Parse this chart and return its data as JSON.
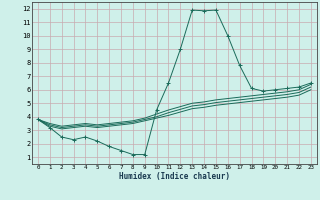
{
  "xlabel": "Humidex (Indice chaleur)",
  "xlim": [
    -0.5,
    23.5
  ],
  "ylim": [
    0.5,
    12.5
  ],
  "xticks": [
    0,
    1,
    2,
    3,
    4,
    5,
    6,
    7,
    8,
    9,
    10,
    11,
    12,
    13,
    14,
    15,
    16,
    17,
    18,
    19,
    20,
    21,
    22,
    23
  ],
  "yticks": [
    1,
    2,
    3,
    4,
    5,
    6,
    7,
    8,
    9,
    10,
    11,
    12
  ],
  "bg_color": "#cff0ea",
  "grid_color": "#c8aab0",
  "line_color": "#1a6b5a",
  "main_line": {
    "x": [
      0,
      1,
      2,
      3,
      4,
      5,
      6,
      7,
      8,
      9,
      10,
      11,
      12,
      13,
      14,
      15,
      16,
      17,
      18,
      19,
      20,
      21,
      22,
      23
    ],
    "y": [
      3.8,
      3.2,
      2.5,
      2.3,
      2.5,
      2.2,
      1.8,
      1.5,
      1.2,
      1.2,
      4.5,
      6.5,
      9.0,
      11.9,
      11.85,
      11.9,
      10.0,
      7.8,
      6.1,
      5.9,
      6.0,
      6.1,
      6.2,
      6.5
    ]
  },
  "smooth_lines": [
    {
      "x": [
        0,
        1,
        2,
        3,
        4,
        5,
        6,
        7,
        8,
        9,
        10,
        11,
        12,
        13,
        14,
        15,
        16,
        17,
        18,
        19,
        20,
        21,
        22,
        23
      ],
      "y": [
        3.8,
        3.5,
        3.3,
        3.4,
        3.5,
        3.4,
        3.5,
        3.6,
        3.7,
        3.9,
        4.2,
        4.5,
        4.75,
        5.0,
        5.1,
        5.25,
        5.35,
        5.45,
        5.55,
        5.65,
        5.75,
        5.85,
        6.0,
        6.4
      ]
    },
    {
      "x": [
        0,
        1,
        2,
        3,
        4,
        5,
        6,
        7,
        8,
        9,
        10,
        11,
        12,
        13,
        14,
        15,
        16,
        17,
        18,
        19,
        20,
        21,
        22,
        23
      ],
      "y": [
        3.8,
        3.4,
        3.2,
        3.3,
        3.4,
        3.3,
        3.4,
        3.5,
        3.6,
        3.8,
        4.0,
        4.3,
        4.55,
        4.8,
        4.9,
        5.05,
        5.15,
        5.25,
        5.35,
        5.45,
        5.55,
        5.65,
        5.8,
        6.2
      ]
    },
    {
      "x": [
        0,
        1,
        2,
        3,
        4,
        5,
        6,
        7,
        8,
        9,
        10,
        11,
        12,
        13,
        14,
        15,
        16,
        17,
        18,
        19,
        20,
        21,
        22,
        23
      ],
      "y": [
        3.8,
        3.3,
        3.1,
        3.2,
        3.3,
        3.2,
        3.3,
        3.4,
        3.5,
        3.7,
        3.9,
        4.1,
        4.35,
        4.6,
        4.7,
        4.85,
        4.95,
        5.05,
        5.15,
        5.25,
        5.35,
        5.45,
        5.6,
        6.0
      ]
    }
  ]
}
